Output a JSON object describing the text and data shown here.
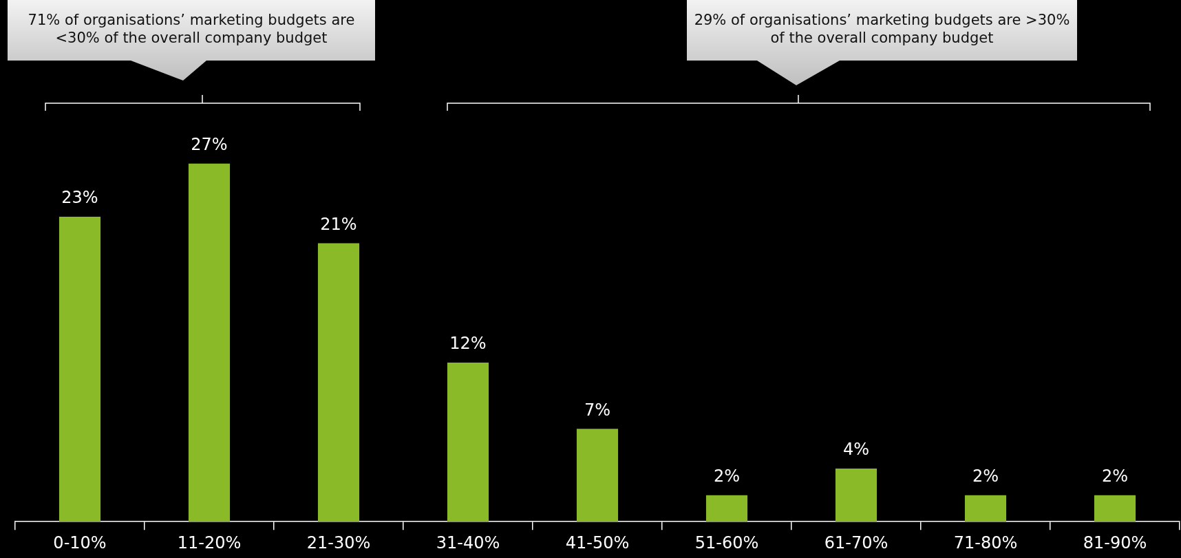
{
  "chart_data": {
    "type": "bar",
    "categories": [
      "0-10%",
      "11-20%",
      "21-30%",
      "31-40%",
      "41-50%",
      "51-60%",
      "61-70%",
      "71-80%",
      "81-90%"
    ],
    "values": [
      23,
      27,
      21,
      12,
      7,
      2,
      4,
      2,
      2
    ],
    "color": "#8aba27",
    "value_labels": [
      "23%",
      "27%",
      "21%",
      "12%",
      "7%",
      "2%",
      "4%",
      "2%",
      "2%"
    ],
    "annotations": [
      "71% of organisations’ marketing budgets are <30% of the overall company budget",
      "29% of organisations’ marketing budgets are >30% of the overall company budget"
    ]
  }
}
